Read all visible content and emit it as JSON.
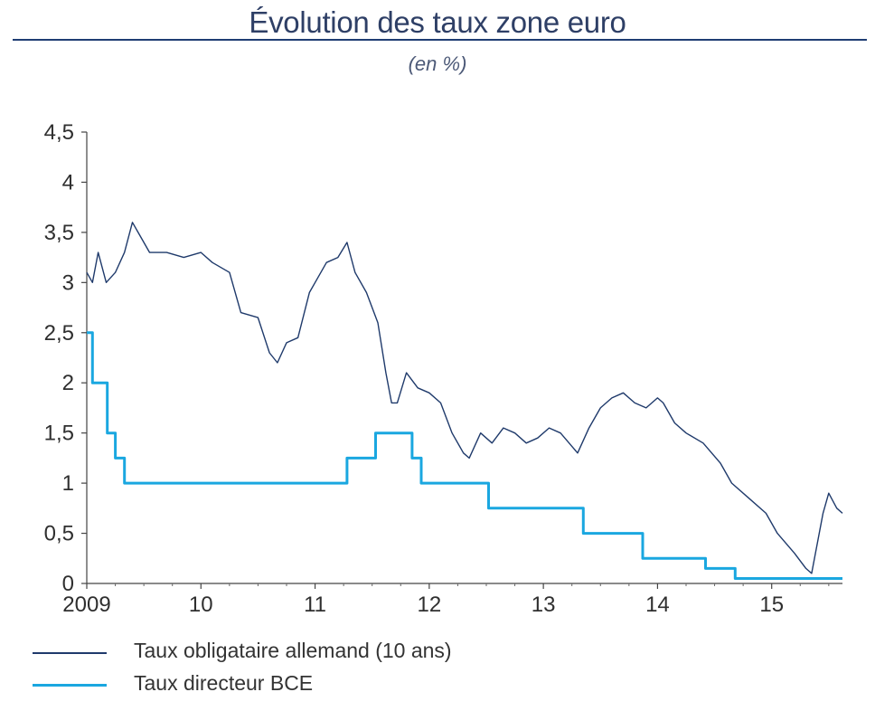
{
  "chart_data": {
    "type": "line",
    "title": "Évolution des taux zone euro",
    "subtitle": "(en %)",
    "xlabel": "",
    "ylabel": "",
    "xlim": [
      2009.0,
      2015.62
    ],
    "ylim": [
      0,
      4.5
    ],
    "y_ticks": [
      "0",
      "0,5",
      "1",
      "1,5",
      "2",
      "2,5",
      "3",
      "3,5",
      "4",
      "4,5"
    ],
    "x_ticks": [
      {
        "value": 2009,
        "label": "2009"
      },
      {
        "value": 2010,
        "label": "10"
      },
      {
        "value": 2011,
        "label": "11"
      },
      {
        "value": 2012,
        "label": "12"
      },
      {
        "value": 2013,
        "label": "13"
      },
      {
        "value": 2014,
        "label": "14"
      },
      {
        "value": 2015,
        "label": "15"
      }
    ],
    "grid": false,
    "legend_position": "bottom-left",
    "series": [
      {
        "name": "Taux obligataire allemand (10 ans)",
        "color": "#1f3a6b",
        "step": false,
        "x": [
          2009.0,
          2009.05,
          2009.1,
          2009.17,
          2009.25,
          2009.33,
          2009.4,
          2009.45,
          2009.55,
          2009.7,
          2009.85,
          2010.0,
          2010.1,
          2010.25,
          2010.35,
          2010.5,
          2010.6,
          2010.67,
          2010.75,
          2010.85,
          2010.95,
          2011.0,
          2011.1,
          2011.2,
          2011.28,
          2011.35,
          2011.45,
          2011.55,
          2011.62,
          2011.67,
          2011.72,
          2011.8,
          2011.9,
          2012.0,
          2012.1,
          2012.2,
          2012.3,
          2012.35,
          2012.45,
          2012.55,
          2012.65,
          2012.75,
          2012.85,
          2012.95,
          2013.05,
          2013.15,
          2013.3,
          2013.4,
          2013.5,
          2013.6,
          2013.7,
          2013.8,
          2013.9,
          2014.0,
          2014.05,
          2014.15,
          2014.25,
          2014.4,
          2014.55,
          2014.65,
          2014.8,
          2014.95,
          2015.05,
          2015.2,
          2015.3,
          2015.35,
          2015.45,
          2015.5,
          2015.57,
          2015.62
        ],
        "y": [
          3.1,
          3.0,
          3.3,
          3.0,
          3.1,
          3.3,
          3.6,
          3.5,
          3.3,
          3.3,
          3.25,
          3.3,
          3.2,
          3.1,
          2.7,
          2.65,
          2.3,
          2.2,
          2.4,
          2.45,
          2.9,
          3.0,
          3.2,
          3.25,
          3.4,
          3.1,
          2.9,
          2.6,
          2.1,
          1.8,
          1.8,
          2.1,
          1.95,
          1.9,
          1.8,
          1.5,
          1.3,
          1.25,
          1.5,
          1.4,
          1.55,
          1.5,
          1.4,
          1.45,
          1.55,
          1.5,
          1.3,
          1.55,
          1.75,
          1.85,
          1.9,
          1.8,
          1.75,
          1.85,
          1.8,
          1.6,
          1.5,
          1.4,
          1.2,
          1.0,
          0.85,
          0.7,
          0.5,
          0.3,
          0.15,
          0.1,
          0.7,
          0.9,
          0.75,
          0.7
        ]
      },
      {
        "name": "Taux directeur BCE",
        "color": "#1aa7e0",
        "step": true,
        "x": [
          2009.0,
          2009.05,
          2009.18,
          2009.25,
          2009.33,
          2011.28,
          2011.53,
          2011.85,
          2011.93,
          2012.52,
          2013.35,
          2013.87,
          2014.42,
          2014.68,
          2015.62
        ],
        "y": [
          2.5,
          2.0,
          1.5,
          1.25,
          1.0,
          1.25,
          1.5,
          1.25,
          1.0,
          0.75,
          0.5,
          0.25,
          0.15,
          0.05,
          0.05
        ]
      }
    ]
  }
}
